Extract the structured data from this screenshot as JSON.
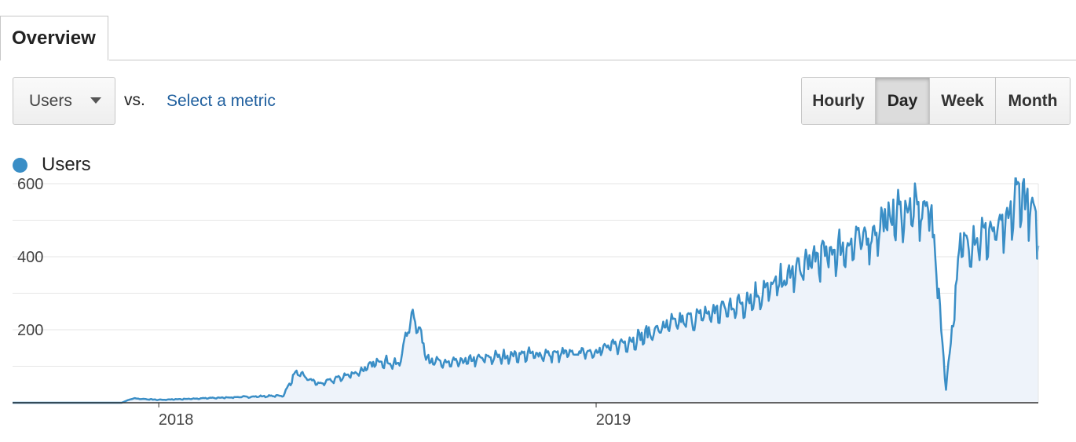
{
  "tabs": [
    {
      "label": "Overview",
      "active": true
    }
  ],
  "metric_selector": {
    "selected": "Users",
    "vs_label": "vs.",
    "select_metric_label": "Select a metric"
  },
  "granularity": {
    "buttons": [
      "Hourly",
      "Day",
      "Week",
      "Month"
    ],
    "active": "Day"
  },
  "colors": {
    "series": "#3a8ec6",
    "fill": "#eef3fa",
    "link": "#1f5f9e"
  },
  "chart_data": {
    "type": "area",
    "series": [
      {
        "name": "Users"
      }
    ],
    "y_ticks": [
      "600",
      "400",
      "200"
    ],
    "ylim": [
      0,
      600
    ],
    "x_labels": [
      "2018",
      "2019"
    ],
    "x_range": [
      "2017-09-01",
      "2020-01-05"
    ],
    "grid": true,
    "legend_position": "top-left",
    "x": [
      "2017-09-01",
      "2017-12-01",
      "2017-12-10",
      "2018-01-01",
      "2018-03-01",
      "2018-04-15",
      "2018-04-25",
      "2018-05-15",
      "2018-06-01",
      "2018-06-20",
      "2018-07-05",
      "2018-07-20",
      "2018-08-01",
      "2018-08-15",
      "2018-09-01",
      "2018-10-01",
      "2018-11-01",
      "2018-12-01",
      "2019-01-01",
      "2019-02-01",
      "2019-03-01",
      "2019-04-01",
      "2019-05-01",
      "2019-06-01",
      "2019-07-01",
      "2019-08-01",
      "2019-08-20",
      "2019-09-01",
      "2019-09-20",
      "2019-10-01",
      "2019-10-05",
      "2019-10-10",
      "2019-10-20",
      "2019-11-01",
      "2019-11-15",
      "2019-12-01",
      "2019-12-10",
      "2019-12-20",
      "2020-01-01",
      "2020-01-05"
    ],
    "y": [
      0,
      0,
      12,
      8,
      15,
      20,
      85,
      52,
      70,
      90,
      120,
      105,
      255,
      115,
      110,
      125,
      135,
      135,
      145,
      175,
      215,
      245,
      275,
      330,
      400,
      440,
      470,
      515,
      540,
      530,
      560,
      460,
      40,
      440,
      460,
      480,
      490,
      600,
      520,
      470
    ]
  }
}
